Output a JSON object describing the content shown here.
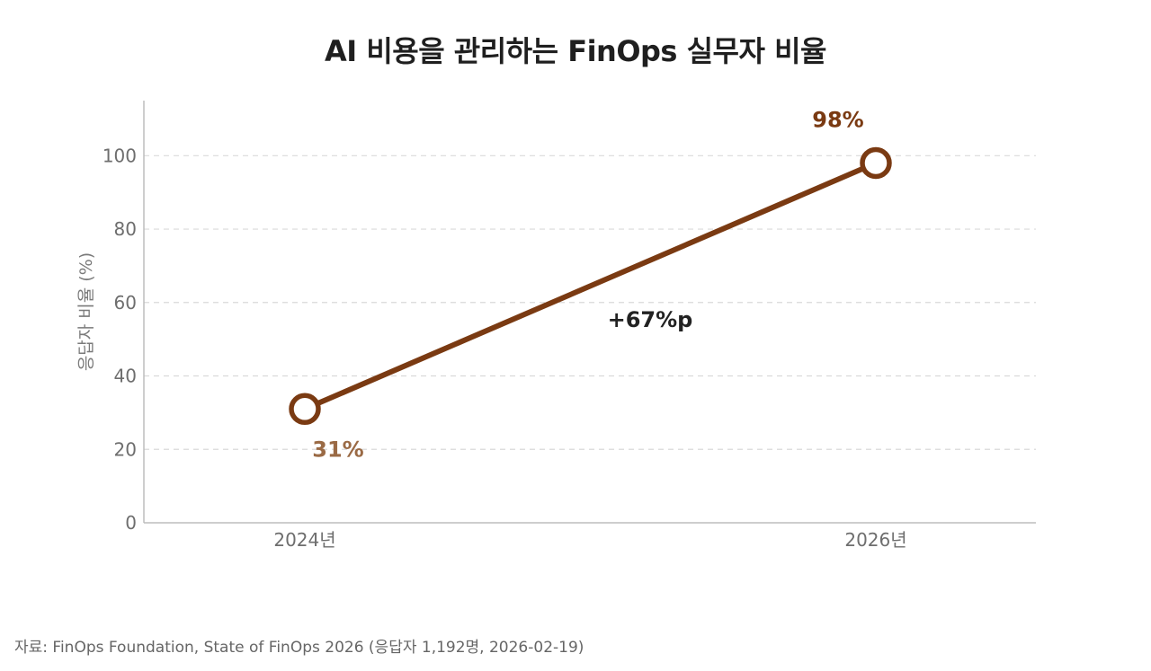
{
  "title": "AI 비용을 관리하는 FinOps 실무자 비율",
  "source": "자료: FinOps Foundation, State of FinOps 2026 (응답자 1,192명, 2026-02-19)",
  "colors": {
    "line": "#7a3a12",
    "label_low": "#9a6a45",
    "label_high": "#7a3a12",
    "grid": "#d9d9d9",
    "axis": "#bdbdbd"
  },
  "chart_data": {
    "type": "line",
    "title": "AI 비용을 관리하는 FinOps 실무자 비율",
    "xlabel": "",
    "ylabel": "응답자 비율 (%)",
    "categories": [
      "2024년",
      "2026년"
    ],
    "series": [
      {
        "values": [
          31,
          98
        ]
      }
    ],
    "data_labels": [
      "31%",
      "98%"
    ],
    "annotation": "+67%p",
    "ylim": [
      0,
      115
    ],
    "yticks": [
      0,
      20,
      40,
      60,
      80,
      100
    ],
    "grid": true
  }
}
